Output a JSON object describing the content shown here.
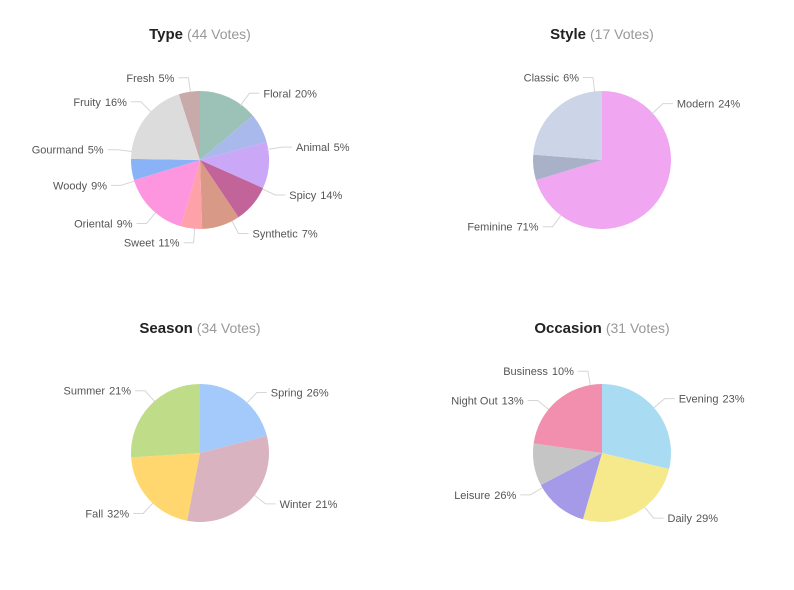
{
  "chart_data": [
    {
      "type": "pie",
      "title": "Type",
      "subtitle": "(44 Votes)",
      "series": [
        {
          "label": "Spicy",
          "value": 14,
          "color": "#9cc2b8"
        },
        {
          "label": "Synthetic",
          "value": 7,
          "color": "#a9b9ec"
        },
        {
          "label": "Sweet",
          "value": 11,
          "color": "#caa7f7"
        },
        {
          "label": "Oriental",
          "value": 9,
          "color": "#c2649a"
        },
        {
          "label": "Woody",
          "value": 9,
          "color": "#d89a86"
        },
        {
          "label": "Gourmand",
          "value": 5,
          "color": "#ffa1a8"
        },
        {
          "label": "Fruity",
          "value": 16,
          "color": "#fd95df"
        },
        {
          "label": "Fresh",
          "value": 5,
          "color": "#8ab3f7"
        },
        {
          "label": "Floral",
          "value": 20,
          "color": "#dcdcdc"
        },
        {
          "label": "Animal",
          "value": 5,
          "color": "#c9aaaa"
        }
      ]
    },
    {
      "type": "pie",
      "title": "Style",
      "subtitle": "(17 Votes)",
      "series": [
        {
          "label": "Feminine",
          "value": 71,
          "color": "#f0a6f0"
        },
        {
          "label": "Classic",
          "value": 6,
          "color": "#a9b1c8"
        },
        {
          "label": "Modern",
          "value": 24,
          "color": "#cbd5e7"
        }
      ]
    },
    {
      "type": "pie",
      "title": "Season",
      "subtitle": "(34 Votes)",
      "series": [
        {
          "label": "Winter",
          "value": 21,
          "color": "#a4cafb"
        },
        {
          "label": "Fall",
          "value": 32,
          "color": "#d9b3bf"
        },
        {
          "label": "Summer",
          "value": 21,
          "color": "#ffd76e"
        },
        {
          "label": "Spring",
          "value": 26,
          "color": "#bfdc88"
        }
      ]
    },
    {
      "type": "pie",
      "title": "Occasion",
      "subtitle": "(31 Votes)",
      "series": [
        {
          "label": "Daily",
          "value": 29,
          "color": "#a9dcf2"
        },
        {
          "label": "Leisure",
          "value": 26,
          "color": "#f6e98c"
        },
        {
          "label": "Night Out",
          "value": 13,
          "color": "#a49ae8"
        },
        {
          "label": "Business",
          "value": 10,
          "color": "#c5c5c5"
        },
        {
          "label": "Evening",
          "value": 23,
          "color": "#f28eae"
        }
      ]
    }
  ]
}
